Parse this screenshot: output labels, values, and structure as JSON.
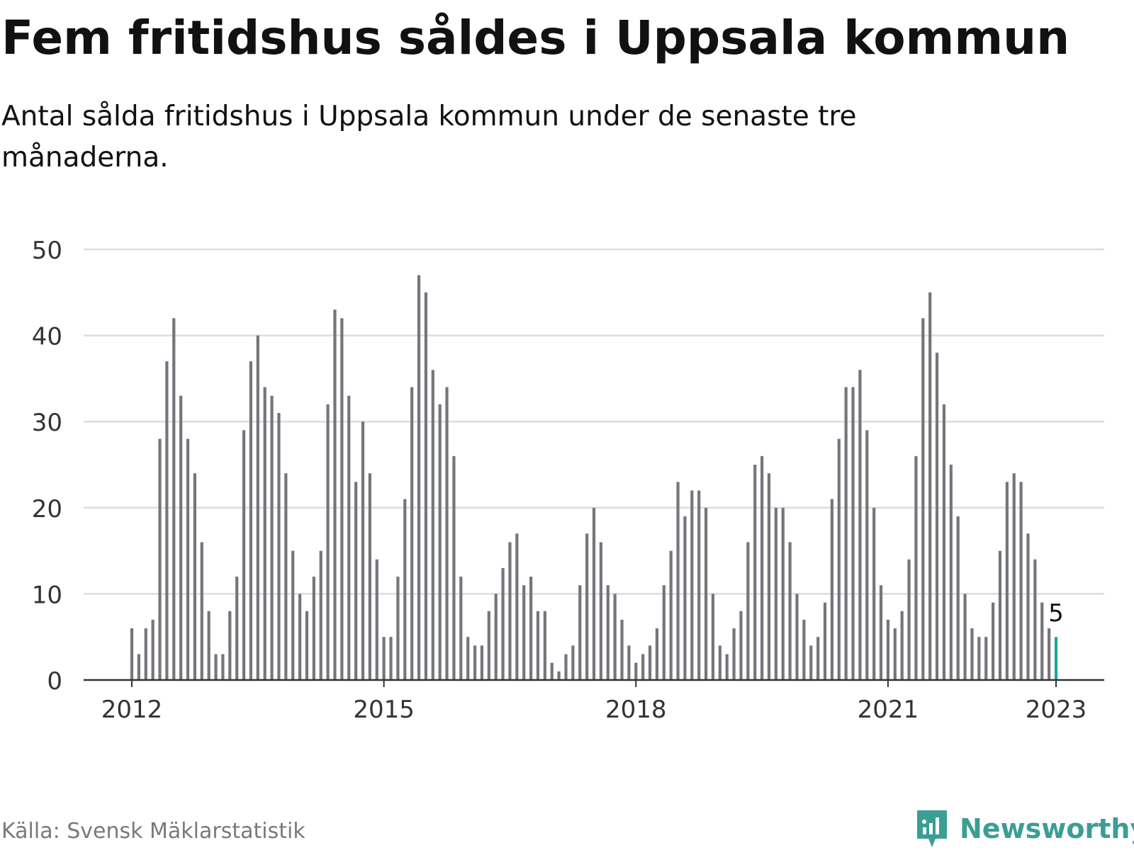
{
  "title": "Fem fritidshus såldes i Uppsala kommun",
  "subtitle": "Antal sålda fritidshus i Uppsala kommun under de senaste tre månaderna.",
  "source": "Källa: Svensk Mäklarstatistik",
  "brand": {
    "name": "Newsworthy",
    "icon": "newsworthy-logo-icon",
    "color": "#3a9e94"
  },
  "colors": {
    "bar": "#75757b",
    "highlight": "#1aa89a",
    "grid": "#dddddd",
    "axis": "#333333",
    "tick_text": "#333333"
  },
  "chart_data": {
    "type": "bar",
    "ylim": [
      0,
      50
    ],
    "yticks": [
      0,
      10,
      20,
      30,
      40,
      50
    ],
    "xtick_labels": [
      "2012",
      "2015",
      "2018",
      "2021",
      "2023"
    ],
    "grid": true,
    "legend": "none",
    "start": "2012-01",
    "frequency": "monthly",
    "highlight_label": "5",
    "values": [
      6,
      3,
      6,
      7,
      28,
      37,
      42,
      33,
      28,
      24,
      16,
      8,
      3,
      3,
      8,
      12,
      29,
      37,
      40,
      34,
      33,
      31,
      24,
      15,
      10,
      8,
      12,
      15,
      32,
      43,
      42,
      33,
      23,
      30,
      24,
      14,
      5,
      5,
      12,
      21,
      34,
      47,
      45,
      36,
      32,
      34,
      26,
      12,
      5,
      4,
      4,
      8,
      10,
      13,
      16,
      17,
      11,
      12,
      8,
      8,
      2,
      1,
      3,
      4,
      11,
      17,
      20,
      16,
      11,
      10,
      7,
      4,
      2,
      3,
      4,
      6,
      11,
      15,
      23,
      19,
      22,
      22,
      20,
      10,
      4,
      3,
      6,
      8,
      16,
      25,
      26,
      24,
      20,
      20,
      16,
      10,
      7,
      4,
      5,
      9,
      21,
      28,
      34,
      34,
      36,
      29,
      20,
      11,
      7,
      6,
      8,
      14,
      26,
      42,
      45,
      38,
      32,
      25,
      19,
      10,
      6,
      5,
      5,
      9,
      15,
      23,
      24,
      23,
      17,
      14,
      9,
      6,
      5
    ]
  }
}
